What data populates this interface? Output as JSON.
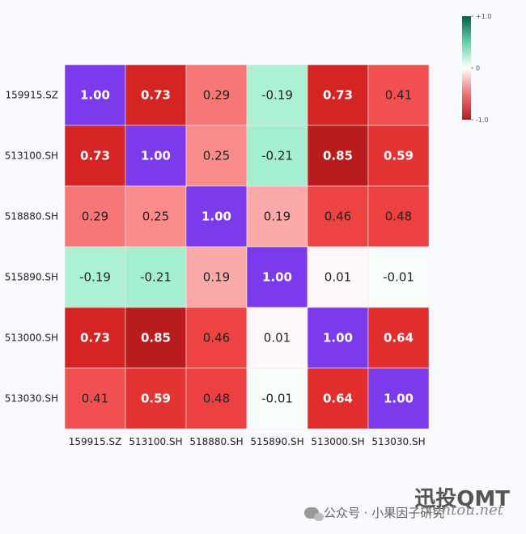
{
  "chart_data": {
    "type": "heatmap",
    "x_labels": [
      "159915.SZ",
      "513100.SH",
      "518880.SH",
      "515890.SH",
      "513000.SH",
      "513030.SH"
    ],
    "y_labels": [
      "159915.SZ",
      "513100.SH",
      "518880.SH",
      "515890.SH",
      "513000.SH",
      "513030.SH"
    ],
    "values": [
      [
        1.0,
        0.73,
        0.29,
        -0.19,
        0.73,
        0.41
      ],
      [
        0.73,
        1.0,
        0.25,
        -0.21,
        0.85,
        0.59
      ],
      [
        0.29,
        0.25,
        1.0,
        0.19,
        0.46,
        0.48
      ],
      [
        -0.19,
        -0.21,
        0.19,
        1.0,
        0.01,
        -0.01
      ],
      [
        0.73,
        0.85,
        0.46,
        0.01,
        1.0,
        0.64
      ],
      [
        0.41,
        0.59,
        0.48,
        -0.01,
        0.64,
        1.0
      ]
    ],
    "value_labels": [
      [
        "1.00",
        "0.73",
        "0.29",
        "-0.19",
        "0.73",
        "0.41"
      ],
      [
        "0.73",
        "1.00",
        "0.25",
        "-0.21",
        "0.85",
        "0.59"
      ],
      [
        "0.29",
        "0.25",
        "1.00",
        "0.19",
        "0.46",
        "0.48"
      ],
      [
        "-0.19",
        "-0.21",
        "0.19",
        "1.00",
        "0.01",
        "-0.01"
      ],
      [
        "0.73",
        "0.85",
        "0.46",
        "0.01",
        "1.00",
        "0.64"
      ],
      [
        "0.41",
        "0.59",
        "0.48",
        "-0.01",
        "0.64",
        "1.00"
      ]
    ],
    "colorbar": {
      "range": [
        -1,
        1
      ],
      "tick_labels": [
        "+1.0",
        "0",
        "-1.0"
      ],
      "tick_values": [
        1,
        0,
        -1
      ],
      "placement": "top-right"
    },
    "diagonal_color": "#7c3aed",
    "color_scale": {
      "negative_end": "#b91c1c",
      "zero": "#ffffff",
      "positive_end": "#065f46"
    }
  },
  "watermark": {
    "brand": "迅投QMT",
    "url": "xuntou.net",
    "account": "公众号 · 小果因子研究"
  }
}
